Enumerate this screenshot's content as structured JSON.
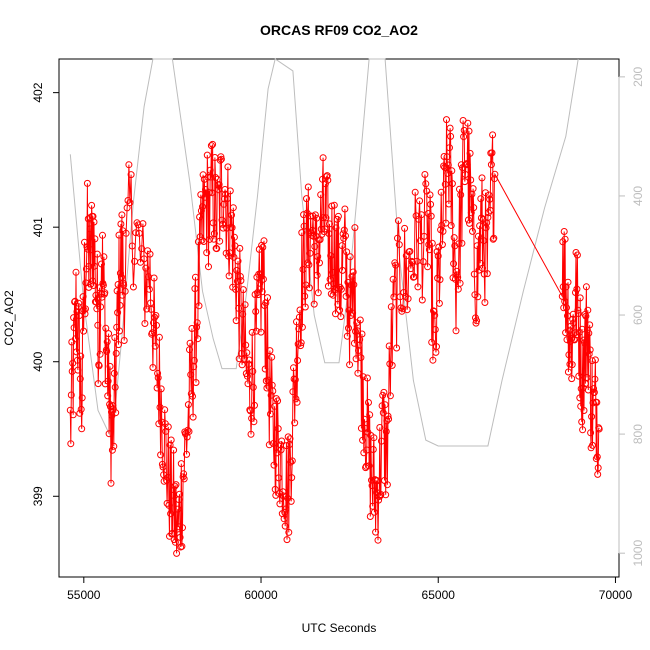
{
  "chart_data": {
    "type": "line",
    "title": "ORCAS RF09 CO2_AO2",
    "xlabel": "UTC Seconds",
    "ylabel": "CO2_AO2",
    "xlim": [
      54300,
      70100
    ],
    "ylim": [
      398.4,
      402.25
    ],
    "y2lim": [
      1040,
      170
    ],
    "x_ticks": [
      55000,
      60000,
      65000,
      70000
    ],
    "y_ticks": [
      399,
      400,
      401,
      402
    ],
    "y2_ticks": [
      200,
      400,
      600,
      800,
      1000
    ],
    "series": [
      {
        "color": "#ff0000",
        "marker": "open-circle",
        "points": [
          [
            54620,
            399.5
          ],
          [
            54700,
            399.9
          ],
          [
            54780,
            400.4
          ],
          [
            54860,
            400.1
          ],
          [
            54940,
            399.7
          ],
          [
            55020,
            400.6
          ],
          [
            55100,
            400.9
          ],
          [
            55180,
            400.7
          ],
          [
            55260,
            401.0
          ],
          [
            55340,
            400.6
          ],
          [
            55420,
            400.2
          ],
          [
            55500,
            400.8
          ],
          [
            55580,
            400.4
          ],
          [
            55660,
            400.0
          ],
          [
            55740,
            399.6
          ],
          [
            55820,
            399.4
          ],
          [
            55900,
            399.9
          ],
          [
            55980,
            400.5
          ],
          [
            56060,
            400.8
          ],
          [
            56140,
            400.6
          ],
          [
            56300,
            401.1
          ],
          [
            56500,
            400.9
          ],
          [
            56700,
            400.6
          ],
          [
            56850,
            400.7
          ],
          [
            56950,
            400.3
          ],
          [
            57050,
            400.0
          ],
          [
            57150,
            399.8
          ],
          [
            57250,
            399.5
          ],
          [
            57350,
            399.2
          ],
          [
            57450,
            399.0
          ],
          [
            57550,
            398.9
          ],
          [
            57650,
            398.7
          ],
          [
            57750,
            399.0
          ],
          [
            57850,
            399.3
          ],
          [
            57950,
            399.6
          ],
          [
            58050,
            399.9
          ],
          [
            58150,
            400.2
          ],
          [
            58250,
            400.6
          ],
          [
            58350,
            401.0
          ],
          [
            58450,
            401.2
          ],
          [
            58550,
            401.1
          ],
          [
            58650,
            401.3
          ],
          [
            58750,
            401.0
          ],
          [
            58850,
            401.2
          ],
          [
            58950,
            401.4
          ],
          [
            59050,
            401.1
          ],
          [
            59150,
            401.0
          ],
          [
            59250,
            400.8
          ],
          [
            59350,
            400.5
          ],
          [
            59450,
            400.3
          ],
          [
            59550,
            400.0
          ],
          [
            59650,
            399.8
          ],
          [
            59750,
            399.9
          ],
          [
            59850,
            400.1
          ],
          [
            59950,
            400.4
          ],
          [
            60050,
            400.7
          ],
          [
            60150,
            400.2
          ],
          [
            60250,
            399.7
          ],
          [
            60350,
            399.5
          ],
          [
            60450,
            399.4
          ],
          [
            60550,
            399.3
          ],
          [
            60650,
            399.2
          ],
          [
            60750,
            399.0
          ],
          [
            60850,
            399.4
          ],
          [
            60950,
            399.8
          ],
          [
            61050,
            400.3
          ],
          [
            61150,
            400.6
          ],
          [
            61250,
            400.8
          ],
          [
            61350,
            400.9
          ],
          [
            61450,
            401.0
          ],
          [
            61550,
            400.7
          ],
          [
            61650,
            400.9
          ],
          [
            61750,
            401.1
          ],
          [
            61850,
            401.0
          ],
          [
            61950,
            400.8
          ],
          [
            62050,
            400.9
          ],
          [
            62150,
            400.7
          ],
          [
            62250,
            400.6
          ],
          [
            62350,
            400.8
          ],
          [
            62450,
            400.5
          ],
          [
            62550,
            400.3
          ],
          [
            62650,
            400.6
          ],
          [
            62750,
            400.2
          ],
          [
            62850,
            399.9
          ],
          [
            62950,
            399.6
          ],
          [
            63050,
            399.3
          ],
          [
            63150,
            399.1
          ],
          [
            63250,
            399.0
          ],
          [
            63350,
            399.2
          ],
          [
            63450,
            399.5
          ],
          [
            63550,
            399.3
          ],
          [
            63650,
            400.0
          ],
          [
            63800,
            400.5
          ],
          [
            63950,
            400.7
          ],
          [
            64100,
            400.6
          ],
          [
            64250,
            400.8
          ],
          [
            64400,
            400.9
          ],
          [
            64550,
            400.9
          ],
          [
            64700,
            401.0
          ],
          [
            64800,
            400.7
          ],
          [
            64900,
            400.0
          ],
          [
            65000,
            400.6
          ],
          [
            65100,
            400.9
          ],
          [
            65200,
            401.3
          ],
          [
            65300,
            401.5
          ],
          [
            65400,
            401.1
          ],
          [
            65500,
            400.6
          ],
          [
            65600,
            400.9
          ],
          [
            65700,
            401.4
          ],
          [
            65800,
            401.6
          ],
          [
            65900,
            401.2
          ],
          [
            66000,
            400.8
          ],
          [
            66100,
            400.6
          ],
          [
            66200,
            401.0
          ],
          [
            66300,
            400.9
          ],
          [
            66400,
            400.7
          ],
          [
            66500,
            401.3
          ],
          [
            66600,
            401.4
          ],
          [
            68500,
            400.9
          ],
          [
            68580,
            400.6
          ],
          [
            68660,
            400.4
          ],
          [
            68740,
            400.1
          ],
          [
            68820,
            400.3
          ],
          [
            68900,
            400.5
          ],
          [
            68980,
            400.2
          ],
          [
            69060,
            399.9
          ],
          [
            69140,
            400.1
          ],
          [
            69220,
            400.3
          ],
          [
            69300,
            399.8
          ],
          [
            69380,
            399.6
          ],
          [
            69460,
            399.7
          ],
          [
            69540,
            399.5
          ]
        ]
      },
      {
        "color": "#bdbdbd",
        "axis": "right",
        "points": [
          [
            54620,
            330
          ],
          [
            55000,
            580
          ],
          [
            55400,
            760
          ],
          [
            55800,
            810
          ],
          [
            56100,
            620
          ],
          [
            56400,
            410
          ],
          [
            56700,
            250
          ],
          [
            56950,
            170
          ],
          [
            57500,
            170
          ],
          [
            58000,
            380
          ],
          [
            58350,
            560
          ],
          [
            58650,
            640
          ],
          [
            58900,
            690
          ],
          [
            59300,
            690
          ],
          [
            59600,
            560
          ],
          [
            59900,
            400
          ],
          [
            60200,
            220
          ],
          [
            60400,
            170
          ],
          [
            60900,
            190
          ],
          [
            61150,
            400
          ],
          [
            61500,
            600
          ],
          [
            61800,
            680
          ],
          [
            62200,
            680
          ],
          [
            62500,
            540
          ],
          [
            62800,
            340
          ],
          [
            63050,
            170
          ],
          [
            63500,
            170
          ],
          [
            63900,
            500
          ],
          [
            64300,
            710
          ],
          [
            64650,
            810
          ],
          [
            65000,
            820
          ],
          [
            65700,
            820
          ],
          [
            66400,
            820
          ],
          [
            66800,
            710
          ],
          [
            67400,
            560
          ],
          [
            68000,
            420
          ],
          [
            68600,
            300
          ],
          [
            68950,
            170
          ]
        ]
      }
    ]
  }
}
